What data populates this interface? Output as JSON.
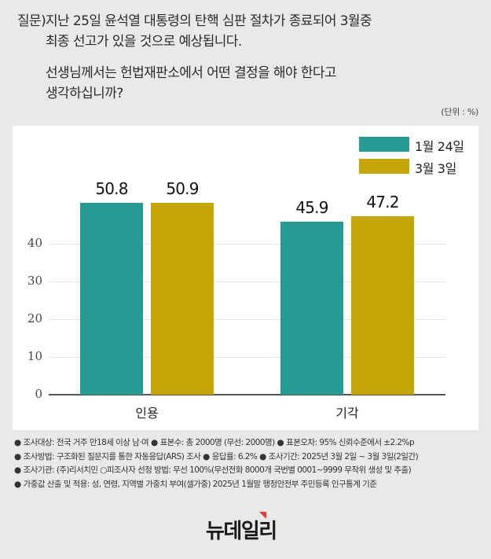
{
  "question": {
    "prefix": "질문)",
    "lines": [
      "지난 25일 윤석열 대통령의 탄핵 심판 절차가 종료되어 3월중",
      "최종 선고가 있을 것으로 예상됩니다.",
      "선생님께서는 헌법재판소에서 어떤 결정을 해야 한다고",
      "생각하십니까?"
    ]
  },
  "unit_label": "(단위 : %)",
  "colors": {
    "series_1": "#269b93",
    "series_2": "#c4a707",
    "background": "#e9e9e9",
    "panel": "#ffffff",
    "logo_accent": "#e53a2b"
  },
  "chart_data": {
    "type": "bar",
    "title": "",
    "xlabel": "",
    "ylabel": "",
    "categories": [
      "인용",
      "기각"
    ],
    "series": [
      {
        "name": "1월 24일",
        "values": [
          50.8,
          45.9
        ],
        "color": "#269b93"
      },
      {
        "name": "3월 3일",
        "values": [
          50.9,
          47.2
        ],
        "color": "#c4a707"
      }
    ],
    "ylim": [
      0,
      50
    ],
    "yticks": [
      "0",
      "10",
      "20",
      "30",
      "40"
    ],
    "grid": true,
    "legend_position": "top-right",
    "data_labels": [
      "50.8",
      "50.9",
      "45.9",
      "47.2"
    ]
  },
  "notes": [
    [
      "조사대상: 전국 거주 만18세 이상 남·여",
      "표본수: 총 2000명 (무선: 2000명)",
      "표본오차: 95% 신뢰수준에서 ±2.2%p"
    ],
    [
      "조사방법: 구조화된 질문지를 통한 자동응답(ARS) 조사",
      "응답률: 6.2%",
      "조사기간: 2025년 3월 2일 ~ 3월 3일(2일간)"
    ],
    [
      "조사기관: (주)리서치민 ○피조사자 선정 방법: 무선 100%(무선전화 8000개 국번별 0001~9999 무작위 생성 및 추출)"
    ],
    [
      "가중값 산출 및 적용: 성, 연령, 지역별 가중치 부여(셀가중) 2025년 1월말 행정안전부 주민등록 인구통계 기준"
    ]
  ],
  "bullet": "●",
  "logo": "뉴데일리"
}
